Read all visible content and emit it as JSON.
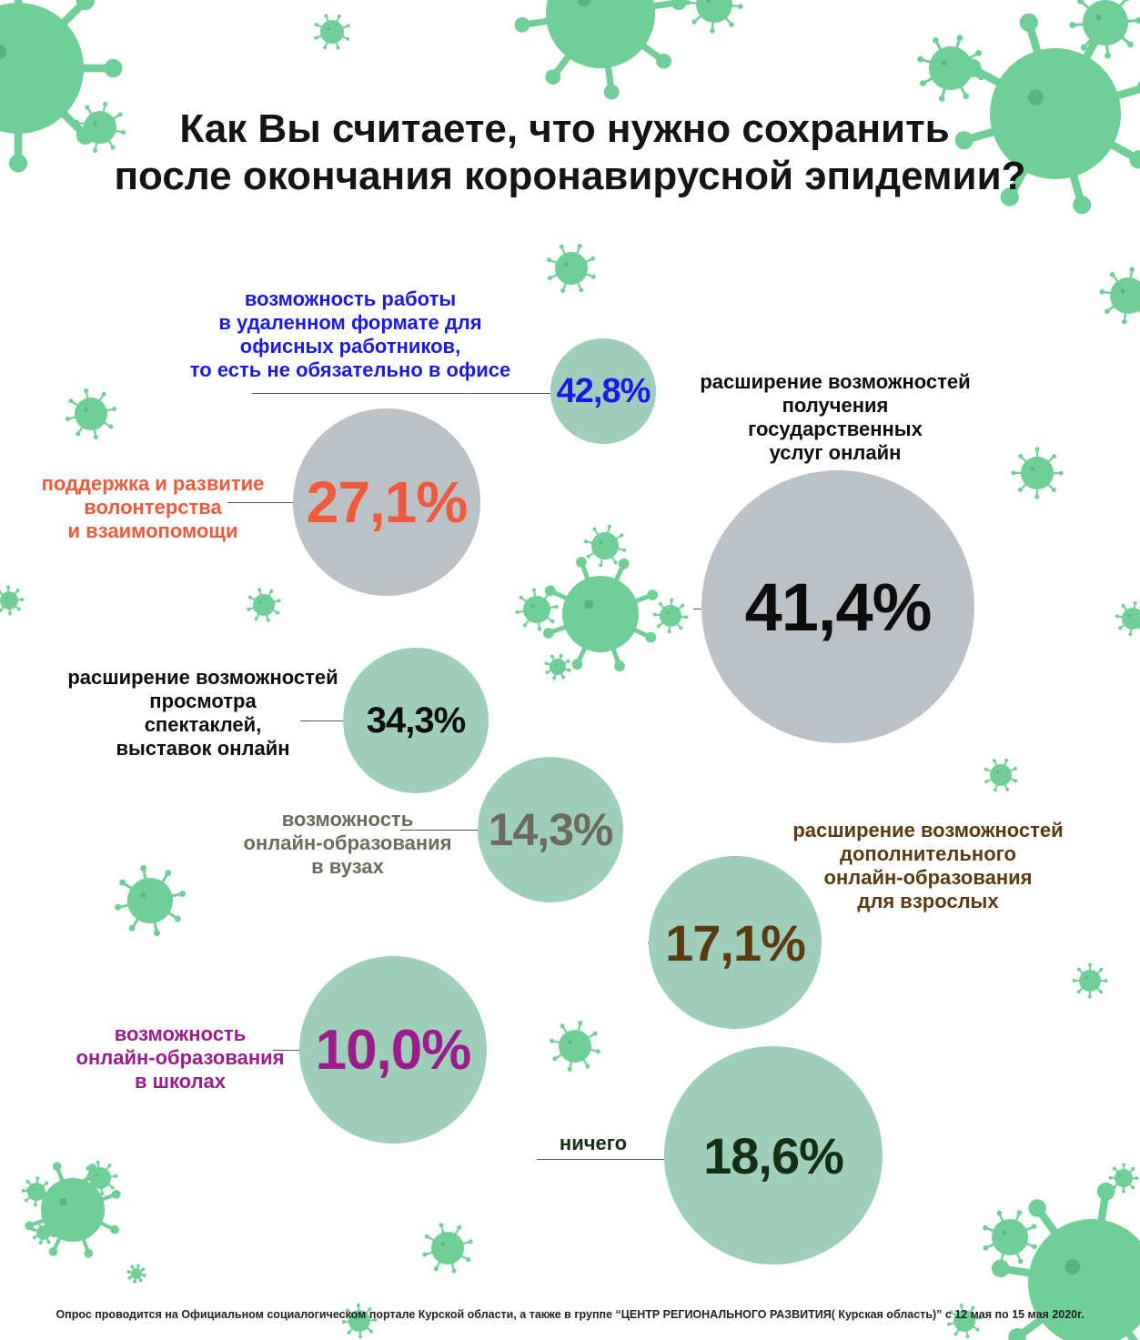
{
  "title": {
    "line1": "Как Вы считаете, что нужно сохранить",
    "line2": "после окончания коронавирусной эпидемии?"
  },
  "colors": {
    "bubble_green": "#9dcfbb",
    "bubble_grey": "#bcc1c6",
    "virus": "#6fcf97"
  },
  "chart_data": {
    "type": "bubble",
    "title": "Как Вы считаете, что нужно сохранить после окончания коронавирусной эпидемии?",
    "unit": "%",
    "items": [
      {
        "label_lines": [
          "возможность работы",
          "в удаленном формате для",
          "офисных работников,",
          "то есть не обязательно в офисе"
        ],
        "value_text": "42,8%",
        "value": 42.8,
        "color": "#1a1ae6"
      },
      {
        "label_lines": [
          "поддержка и развитие",
          "волонтерства",
          "и взаимопомощи"
        ],
        "value_text": "27,1%",
        "value": 27.1,
        "color": "#f05a3c"
      },
      {
        "label_lines": [
          "расширение возможностей",
          "получения",
          "государственных",
          "услуг онлайн"
        ],
        "value_text": "41,4%",
        "value": 41.4,
        "color": "#0d0d0d"
      },
      {
        "label_lines": [
          "расширение возможностей",
          "просмотра",
          "спектаклей,",
          "выставок онлайн"
        ],
        "value_text": "34,3%",
        "value": 34.3,
        "color": "#0d0d0d"
      },
      {
        "label_lines": [
          "возможность",
          "онлайн-образования",
          "в вузах"
        ],
        "value_text": "14,3%",
        "value": 14.3,
        "color": "#6b6b5e"
      },
      {
        "label_lines": [
          "расширение возможностей",
          "дополнительного",
          "онлайн-образования",
          "для взрослых"
        ],
        "value_text": "17,1%",
        "value": 17.1,
        "color": "#5a3a10"
      },
      {
        "label_lines": [
          "возможность",
          "онлайн-образования",
          "в школах"
        ],
        "value_text": "10,0%",
        "value": 10.0,
        "color": "#9c1c8c"
      },
      {
        "label_lines": [
          "ничего"
        ],
        "value_text": "18,6%",
        "value": 18.6,
        "color": "#143014"
      }
    ]
  },
  "footer": "Опрос проводится на Официальном социалогическом портале Курской области, а также в группе “ЦЕНТР РЕГИОНАЛЬНОГО РАЗВИТИЯ( Курская область)” с 12 мая по 15 мая 2020г."
}
